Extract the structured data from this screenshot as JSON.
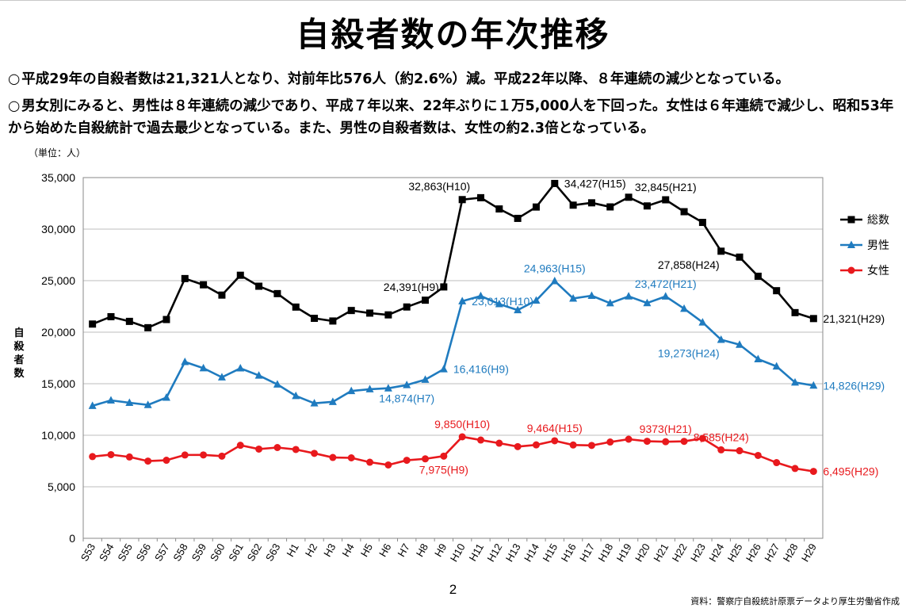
{
  "slide": {
    "title": "自殺者数の年次推移",
    "bullet_mark": "○",
    "bullet1": "平成29年の自殺者数は21,321人となり、対前年比576人（約2.6%）減。平成22年以降、８年連続の減少となっている。",
    "bullet2": "男女別にみると、男性は８年連続の減少であり、平成７年以来、22年ぶりに１万5,000人を下回った。女性は６年連続で減少し、昭和53年から始めた自殺統計で過去最少となっている。また、男性の自殺者数は、女性の約2.3倍となっている。",
    "page_number": "2",
    "source_note": "資料：警察庁自殺統計原票データより厚生労働省作成"
  },
  "colors": {
    "total": "#000000",
    "male": "#1f7bbf",
    "female": "#e8191d",
    "grid": "#bdbdbd"
  },
  "chart_data": {
    "type": "line",
    "unit_label": "（単位：人）",
    "ylabel": "自殺者数",
    "ylim": [
      0,
      35000
    ],
    "yticks": [
      0,
      5000,
      10000,
      15000,
      20000,
      25000,
      30000,
      35000
    ],
    "ytick_labels": [
      "0",
      "5,000",
      "10,000",
      "15,000",
      "20,000",
      "25,000",
      "30,000",
      "35,000"
    ],
    "grid": true,
    "legend_position": "right",
    "categories": [
      "S53",
      "S54",
      "S55",
      "S56",
      "S57",
      "S58",
      "S59",
      "S60",
      "S61",
      "S62",
      "S63",
      "H1",
      "H2",
      "H3",
      "H4",
      "H5",
      "H6",
      "H7",
      "H8",
      "H9",
      "H10",
      "H11",
      "H12",
      "H13",
      "H14",
      "H15",
      "H16",
      "H17",
      "H18",
      "H19",
      "H20",
      "H21",
      "H22",
      "H23",
      "H24",
      "H25",
      "H26",
      "H27",
      "H28",
      "H29"
    ],
    "series": [
      {
        "key": "total",
        "name": "総数",
        "marker": "square",
        "values": [
          20788,
          21503,
          21048,
          20434,
          21228,
          25202,
          24596,
          23599,
          25524,
          24460,
          23742,
          22436,
          21346,
          21084,
          22104,
          21851,
          21679,
          22445,
          23104,
          24391,
          32863,
          33048,
          31957,
          31042,
          32143,
          34427,
          32325,
          32552,
          32155,
          33093,
          32249,
          32845,
          31690,
          30651,
          27858,
          27283,
          25427,
          24025,
          21897,
          21321
        ]
      },
      {
        "key": "male",
        "name": "男性",
        "marker": "triangle",
        "values": [
          12859,
          13386,
          13155,
          12942,
          13654,
          17116,
          16508,
          15624,
          16497,
          15802,
          14934,
          13818,
          13102,
          13242,
          14296,
          14468,
          14560,
          14874,
          15393,
          16416,
          23013,
          23512,
          22727,
          22144,
          23080,
          24963,
          23272,
          23540,
          22813,
          23478,
          22831,
          23472,
          22283,
          20955,
          19273,
          18787,
          17386,
          16681,
          15121,
          14826
        ]
      },
      {
        "key": "female",
        "name": "女性",
        "marker": "circle",
        "values": [
          7929,
          8117,
          7893,
          7492,
          7574,
          8086,
          8088,
          7975,
          9027,
          8658,
          8808,
          8618,
          8244,
          7842,
          7808,
          7383,
          7119,
          7571,
          7711,
          7975,
          9850,
          9536,
          9230,
          8898,
          9063,
          9464,
          9053,
          9012,
          9342,
          9615,
          9418,
          9373,
          9407,
          9696,
          8585,
          8496,
          8041,
          7344,
          6776,
          6495
        ]
      }
    ],
    "annotations": [
      {
        "series": "total",
        "index": 19,
        "text": "24,391(H9)",
        "pos": "left"
      },
      {
        "series": "total",
        "index": 20,
        "text": "32,863(H10)",
        "pos": "above-left"
      },
      {
        "series": "total",
        "index": 25,
        "text": "34,427(H15)",
        "pos": "right"
      },
      {
        "series": "total",
        "index": 31,
        "text": "32,845(H21)",
        "pos": "above"
      },
      {
        "series": "total",
        "index": 34,
        "text": "27,858(H24)",
        "pos": "below-left"
      },
      {
        "series": "total",
        "index": 39,
        "text": "21,321(H29)",
        "pos": "right"
      },
      {
        "series": "male",
        "index": 17,
        "text": "14,874(H7)",
        "pos": "below"
      },
      {
        "series": "male",
        "index": 19,
        "text": "16,416(H9)",
        "pos": "right"
      },
      {
        "series": "male",
        "index": 20,
        "text": "23,013(H10)",
        "pos": "right"
      },
      {
        "series": "male",
        "index": 25,
        "text": "24,963(H15)",
        "pos": "above"
      },
      {
        "series": "male",
        "index": 31,
        "text": "23,472(H21)",
        "pos": "above"
      },
      {
        "series": "male",
        "index": 34,
        "text": "19,273(H24)",
        "pos": "below-left"
      },
      {
        "series": "male",
        "index": 39,
        "text": "14,826(H29)",
        "pos": "right"
      },
      {
        "series": "female",
        "index": 19,
        "text": "7,975(H9)",
        "pos": "below"
      },
      {
        "series": "female",
        "index": 20,
        "text": "9,850(H10)",
        "pos": "above"
      },
      {
        "series": "female",
        "index": 25,
        "text": "9,464(H15)",
        "pos": "above"
      },
      {
        "series": "female",
        "index": 31,
        "text": "9373(H21)",
        "pos": "above"
      },
      {
        "series": "female",
        "index": 34,
        "text": "8,585(H24)",
        "pos": "above"
      },
      {
        "series": "female",
        "index": 39,
        "text": "6,495(H29)",
        "pos": "right"
      }
    ]
  }
}
